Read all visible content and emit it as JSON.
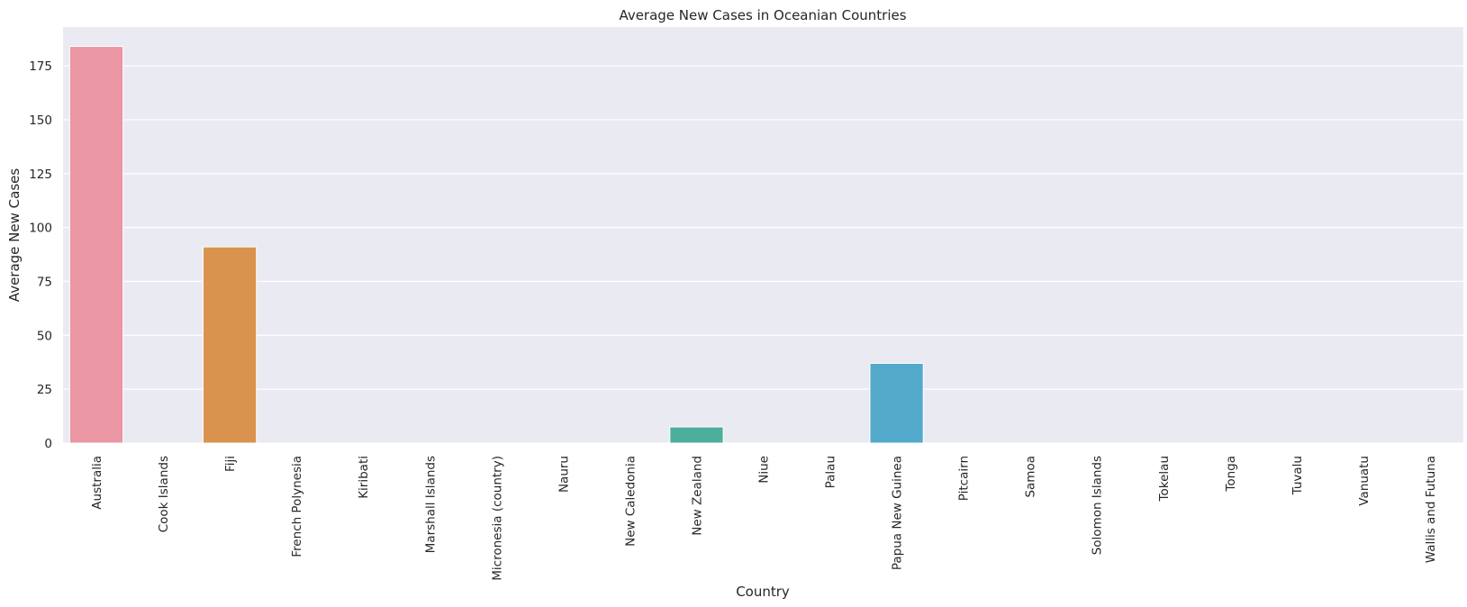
{
  "chart_data": {
    "type": "bar",
    "title": "Average New Cases in Oceanian Countries",
    "xlabel": "Country",
    "ylabel": "Average New Cases",
    "ylim": [
      0,
      193
    ],
    "yticks": [
      0,
      25,
      50,
      75,
      100,
      125,
      150,
      175
    ],
    "grid": true,
    "categories": [
      "Australia",
      "Cook Islands",
      "Fiji",
      "French Polynesia",
      "Kiribati",
      "Marshall Islands",
      "Micronesia (country)",
      "Nauru",
      "New Caledonia",
      "New Zealand",
      "Niue",
      "Palau",
      "Papua New Guinea",
      "Pitcairn",
      "Samoa",
      "Solomon Islands",
      "Tokelau",
      "Tonga",
      "Tuvalu",
      "Vanuatu",
      "Wallis and Futuna"
    ],
    "values": [
      184,
      0,
      91,
      0,
      0,
      0,
      0,
      0,
      0,
      7.5,
      0,
      0,
      37,
      0,
      0,
      0,
      0,
      0,
      0,
      0,
      0
    ],
    "colors": [
      "#ea96a3",
      "#eb9778",
      "#d9934e",
      "#bb9c48",
      "#a6a347",
      "#90a846",
      "#6fae47",
      "#4bb06a",
      "#4daf8c",
      "#4eae9e",
      "#4fadab",
      "#52acba",
      "#53aaca",
      "#5aa6e4",
      "#87a2e6",
      "#a99deb",
      "#c68ded",
      "#e081e6",
      "#e78ed0",
      "#e88fbc",
      "#ea94ad"
    ]
  }
}
